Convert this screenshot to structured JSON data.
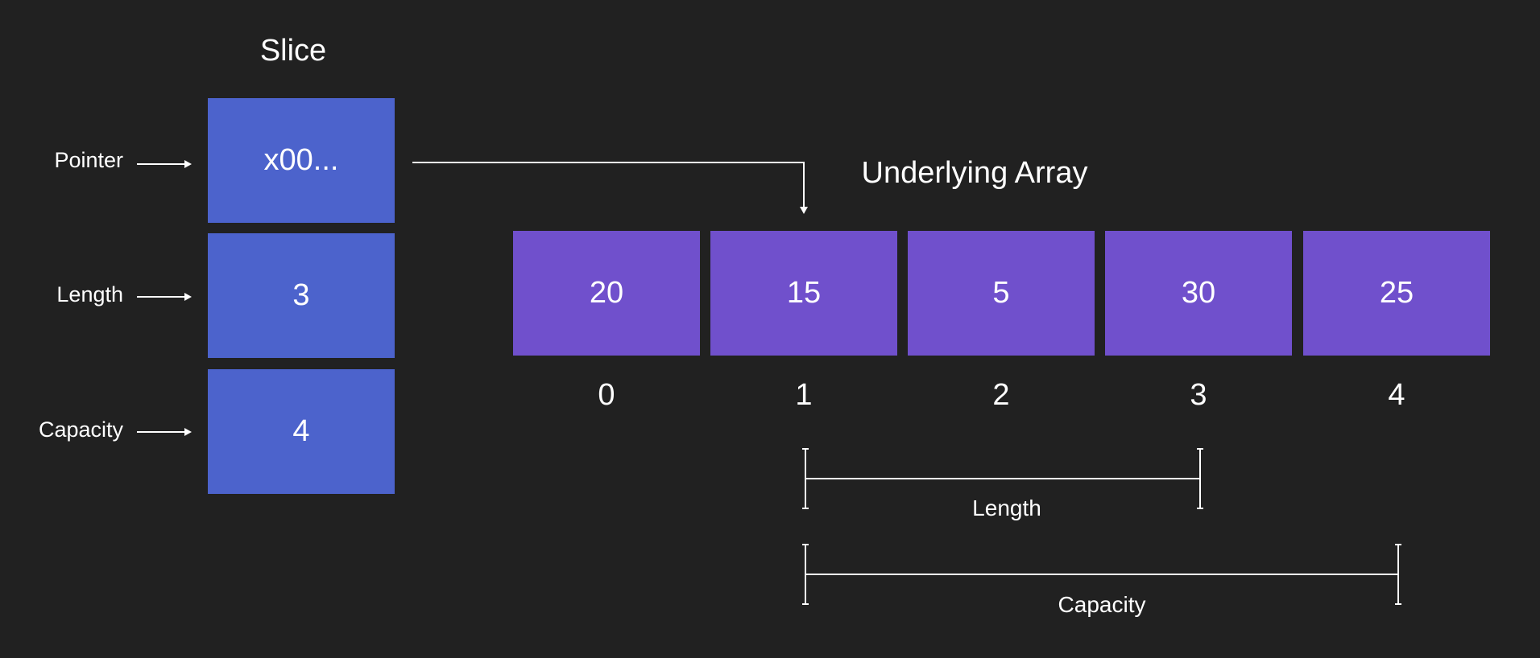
{
  "colors": {
    "background": "#212121",
    "slice_cell": "#4c63cc",
    "array_cell": "#7050cc",
    "line": "#ffffff"
  },
  "slice": {
    "title": "Slice",
    "fields": [
      {
        "label": "Pointer",
        "value": "x00..."
      },
      {
        "label": "Length",
        "value": "3"
      },
      {
        "label": "Capacity",
        "value": "4"
      }
    ]
  },
  "array": {
    "title": "Underlying Array",
    "values": [
      "20",
      "15",
      "5",
      "30",
      "25"
    ],
    "indices": [
      "0",
      "1",
      "2",
      "3",
      "4"
    ],
    "pointer_target_index": 1
  },
  "spans": {
    "length": {
      "label": "Length",
      "from_index": 1,
      "to_index": 3
    },
    "capacity": {
      "label": "Capacity",
      "from_index": 1,
      "to_index": 4
    }
  }
}
